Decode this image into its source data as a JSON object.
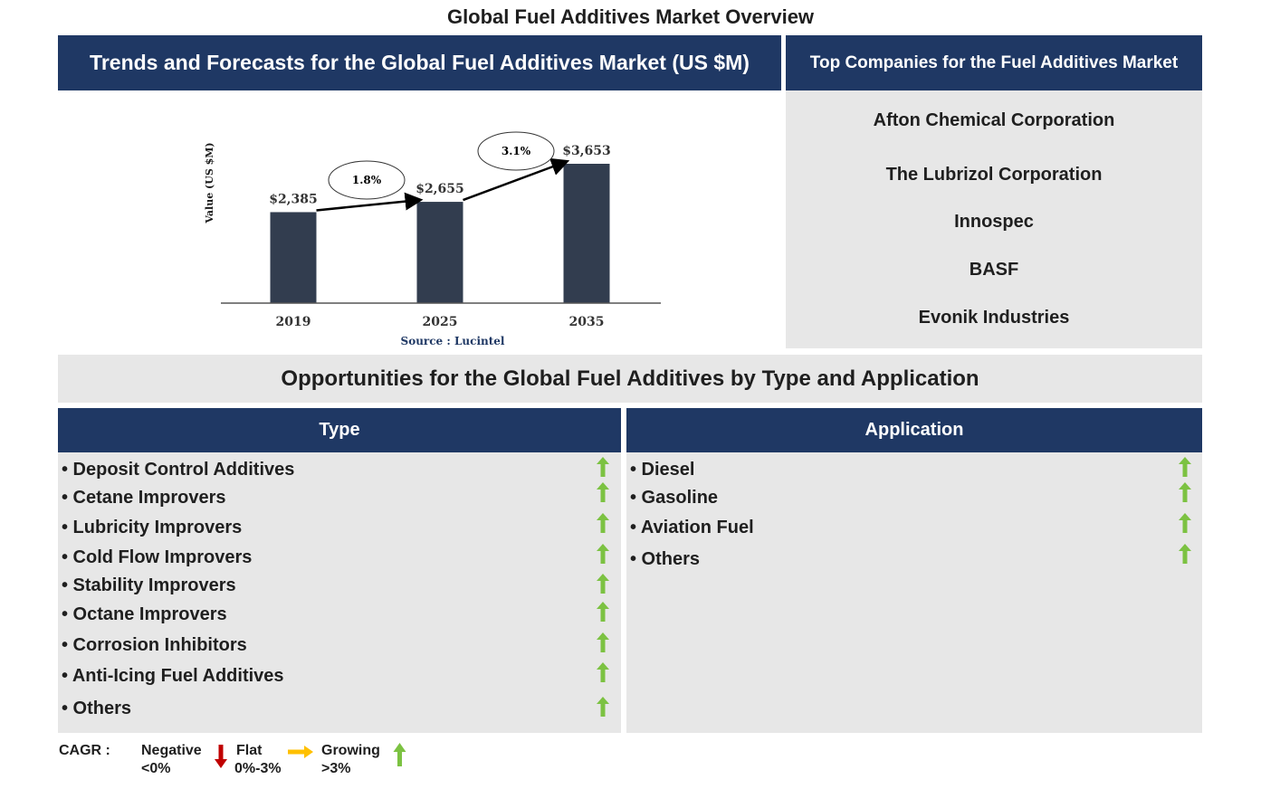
{
  "page_title": "Global Fuel Additives Market Overview",
  "chart_header": "Trends and Forecasts for the Global Fuel Additives Market (US $M)",
  "companies_header": "Top Companies for the Fuel Additives Market",
  "companies": [
    "Afton Chemical Corporation",
    "The Lubrizol Corporation",
    "Innospec",
    "BASF",
    "Evonik Industries"
  ],
  "opportunities_title": "Opportunities for the Global Fuel Additives by Type and Application",
  "type_header": "Type",
  "application_header": "Application",
  "type_items": [
    {
      "label": "• Deposit Control Additives",
      "trend": "growing"
    },
    {
      "label": "• Cetane Improvers",
      "trend": "growing"
    },
    {
      "label": "• Lubricity Improvers",
      "trend": "growing"
    },
    {
      "label": "• Cold Flow Improvers",
      "trend": "growing"
    },
    {
      "label": "• Stability Improvers",
      "trend": "growing"
    },
    {
      "label": "• Octane Improvers",
      "trend": "growing"
    },
    {
      "label": "• Corrosion Inhibitors",
      "trend": "growing"
    },
    {
      "label": "• Anti-Icing Fuel Additives",
      "trend": "growing"
    },
    {
      "label": "• Others",
      "trend": "growing"
    }
  ],
  "application_items": [
    {
      "label": "• Diesel",
      "trend": "growing"
    },
    {
      "label": "• Gasoline",
      "trend": "growing"
    },
    {
      "label": "• Aviation Fuel",
      "trend": "growing"
    },
    {
      "label": "• Others",
      "trend": "growing"
    }
  ],
  "legend": {
    "cagr_label": "CAGR :",
    "negative_label": "Negative",
    "negative_range": "<0%",
    "flat_label": "Flat",
    "flat_range": "0%-3%",
    "growing_label": "Growing",
    "growing_range": ">3%"
  },
  "colors": {
    "navy": "#1f3864",
    "panel_grey": "#e7e7e7",
    "bar": "#323d4f",
    "growing": "#7cc242",
    "flat": "#ffc000",
    "negative": "#c00000",
    "source": "#1f3864"
  },
  "chart_data": {
    "type": "bar",
    "categories": [
      "2019",
      "2025",
      "2035"
    ],
    "values": [
      2385,
      2655,
      3653
    ],
    "value_labels": [
      "$2,385",
      "$2,655",
      "$3,653"
    ],
    "ylabel": "Value (US $M)",
    "ylim": [
      0,
      4000
    ],
    "source": "Source : Lucintel",
    "cagr_annotations": [
      {
        "from": "2019",
        "to": "2025",
        "label": "1.8%"
      },
      {
        "from": "2025",
        "to": "2035",
        "label": "3.1%"
      }
    ]
  }
}
